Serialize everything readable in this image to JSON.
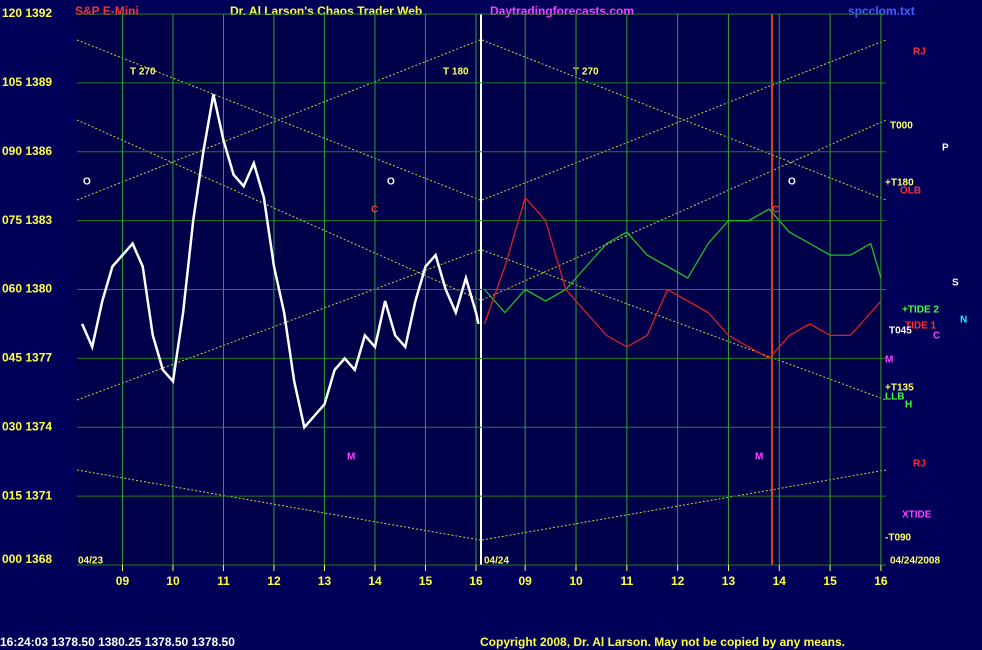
{
  "header": {
    "symbol": "S&P E-Mini",
    "title": "Dr. Al Larson's Chaos Trader Web",
    "site": "Daytradingforecasts.com",
    "file": "spcclom.txt"
  },
  "footer": {
    "quote": "16:24:03  1378.50 1380.25 1378.50 1378.50",
    "copyright": "Copyright 2008, Dr. Al Larson. May not be copied by any means."
  },
  "chart_data": [
    {
      "type": "line",
      "x": [
        8.2,
        8.4,
        8.6,
        8.8,
        9,
        9.2,
        9.4,
        9.6,
        9.8,
        10,
        10.2,
        10.4,
        10.6,
        10.8,
        11,
        11.2,
        11.4,
        11.6,
        11.8,
        12,
        12.2,
        12.4,
        12.6,
        12.8,
        13,
        13.2,
        13.4,
        13.6,
        13.8,
        14,
        14.2,
        14.4,
        14.6,
        14.8,
        15,
        15.2,
        15.4,
        15.6,
        15.8,
        16,
        16.05
      ],
      "series": [
        {
          "color": "#ffffff",
          "values": [
            1378.5,
            1377.5,
            1379.5,
            1381,
            1381.5,
            1382,
            1381,
            1378,
            1376.5,
            1376,
            1379,
            1383,
            1386,
            1388.5,
            1386.5,
            1385,
            1384.5,
            1385.5,
            1384,
            1381,
            1379,
            1376,
            1374,
            1374.5,
            1375,
            1376.5,
            1377,
            1376.5,
            1378,
            1377.5,
            1379.5,
            1378,
            1377.5,
            1379.5,
            1381,
            1381.5,
            1380,
            1379,
            1380.5,
            1379,
            1378.5
          ]
        }
      ],
      "xlim": [
        8.1,
        16.08
      ],
      "ylim": [
        1368,
        1392
      ],
      "xticks": [
        {
          "value": 9,
          "label": "09"
        },
        10,
        11,
        12,
        13,
        14,
        15,
        16
      ],
      "yticks": [
        {
          "value": 1392,
          "label": "120 1392"
        },
        {
          "value": 1389,
          "label": "105 1389"
        },
        {
          "value": 1386,
          "label": "090 1386"
        },
        {
          "value": 1383,
          "label": "075 1383"
        },
        {
          "value": 1380,
          "label": "060 1380"
        },
        {
          "value": 1377,
          "label": "045 1377"
        },
        {
          "value": 1374,
          "label": "030 1374"
        },
        {
          "value": 1371,
          "label": "015 1371"
        },
        {
          "value": 1368,
          "label": "000 1368"
        }
      ],
      "grid": true,
      "annotations": [
        "T 270",
        "T 180",
        "T 270",
        "RJ",
        "T000",
        "+T180",
        "OLB",
        "P",
        "+TIDE 2",
        "TIDE 1",
        "T045",
        "S",
        "N",
        "C",
        "M",
        "+T135",
        "LLB",
        "H",
        "RJ",
        "XTIDE",
        "-T090",
        "04/23",
        "04/24",
        "04/24/2008",
        "O",
        "O",
        "O",
        "C",
        "C",
        "M",
        "M"
      ]
    },
    {
      "type": "line",
      "x": [
        8.2,
        8.6,
        9,
        9.4,
        9.8,
        10.2,
        10.6,
        11,
        11.4,
        11.8,
        12.2,
        12.6,
        13,
        13.4,
        13.8,
        14.2,
        14.6,
        15,
        15.4,
        15.8,
        16
      ],
      "series": [
        {
          "color": "#20c020",
          "values": [
            1380,
            1379,
            1380,
            1379.5,
            1380,
            1381,
            1382,
            1382.5,
            1381.5,
            1381,
            1380.5,
            1382,
            1383,
            1383,
            1383.5,
            1382.5,
            1382,
            1381.5,
            1381.5,
            1382,
            1380.5
          ]
        },
        {
          "color": "#e02020",
          "values": [
            1378.5,
            1381,
            1384,
            1383,
            1380,
            1379,
            1378,
            1377.5,
            1378,
            1380,
            1379.5,
            1379,
            1378,
            1377.5,
            1377,
            1378,
            1378.5,
            1378,
            1378,
            1379,
            1379.5
          ]
        }
      ],
      "xlim": [
        8.15,
        16.1
      ],
      "ylim": [
        1368,
        1392
      ],
      "xticks": [
        {
          "value": 9,
          "label": "09"
        },
        10,
        11,
        12,
        13,
        14,
        15,
        16
      ],
      "grid": true
    }
  ]
}
